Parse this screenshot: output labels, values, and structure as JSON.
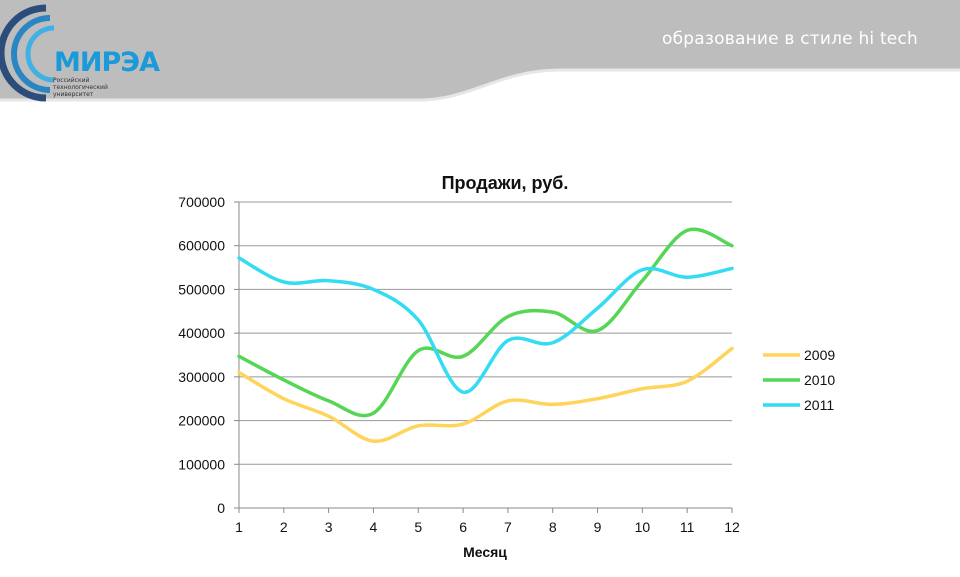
{
  "header": {
    "slogan": "образование в стиле hi tech",
    "logo": {
      "name": "МИРЭА",
      "subtitle": [
        "Российский",
        "технологический",
        "университет"
      ]
    },
    "colors": {
      "band": "#bfbfbf",
      "logo": "#1a9ad8"
    }
  },
  "chart_data": {
    "type": "line",
    "title": "Продажи, руб.",
    "xlabel": "Месяц",
    "ylabel": "",
    "categories": [
      "1",
      "2",
      "3",
      "4",
      "5",
      "6",
      "7",
      "8",
      "9",
      "10",
      "11",
      "12"
    ],
    "yticks": [
      "0",
      "100000",
      "200000",
      "300000",
      "400000",
      "500000",
      "600000",
      "700000"
    ],
    "ylim": [
      0,
      700000
    ],
    "grid": "horizontal",
    "legend_position": "right",
    "series": [
      {
        "name": "2009",
        "color": "#ffd45a",
        "values": [
          310000,
          250000,
          210000,
          153000,
          188000,
          192000,
          245000,
          237000,
          250000,
          273000,
          290000,
          365000
        ]
      },
      {
        "name": "2010",
        "color": "#55d655",
        "values": [
          347000,
          293000,
          245000,
          217000,
          360000,
          347000,
          438000,
          448000,
          406000,
          520000,
          635000,
          600000
        ]
      },
      {
        "name": "2011",
        "color": "#33dcf2",
        "values": [
          572000,
          517000,
          520000,
          500000,
          430000,
          265000,
          383000,
          378000,
          457000,
          545000,
          528000,
          548000
        ]
      }
    ]
  }
}
